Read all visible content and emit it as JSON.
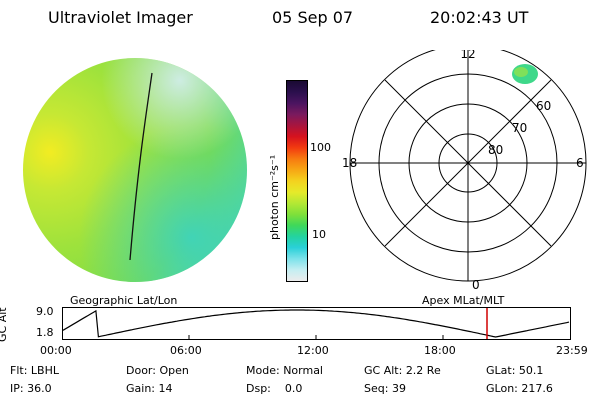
{
  "header": {
    "instrument": "Ultraviolet Imager",
    "date": "05 Sep 07",
    "time": "20:02:43 UT"
  },
  "colorbar": {
    "unit_label": "photon cm⁻²s⁻¹",
    "ticks": [
      "100",
      "10"
    ],
    "colors": [
      "#1a0a33",
      "#2b0f4d",
      "#4b1460",
      "#7a1a5e",
      "#a8153e",
      "#d6121e",
      "#f23a10",
      "#f77a10",
      "#f7a614",
      "#f4d21e",
      "#e6ea2a",
      "#b4e834",
      "#7fe03a",
      "#3fd85a",
      "#23d3a0",
      "#2ad0d8",
      "#7ce2ea",
      "#c4eef2",
      "#ececec"
    ]
  },
  "polar": {
    "hour_labels": {
      "top": "12",
      "left": "18",
      "right": "6",
      "bottom": "0"
    },
    "lat_labels": [
      "60",
      "70",
      "80"
    ]
  },
  "timeline": {
    "left_label": "Geographic Lat/Lon",
    "right_label": "Apex MLat/MLT",
    "axis_title": "GC Alt",
    "y_ticks": [
      "9.0",
      "1.8"
    ],
    "x_ticks": [
      "00:00",
      "06:00",
      "12:00",
      "18:00",
      "23:59"
    ],
    "current_marker_color": "#d00000"
  },
  "footer": {
    "row1": [
      {
        "key": "Flt:",
        "val": "LBHL"
      },
      {
        "key": "Door:",
        "val": "Open"
      },
      {
        "key": "Mode:",
        "val": "Normal"
      },
      {
        "key": "GC Alt:",
        "val": "2.2 Re"
      },
      {
        "key": "GLat:",
        "val": "50.1"
      }
    ],
    "row2": [
      {
        "key": "IP:",
        "val": "36.0"
      },
      {
        "key": "Gain:",
        "val": "14"
      },
      {
        "key": "Dsp:",
        "val": "0.0"
      },
      {
        "key": "Seq:",
        "val": "39"
      },
      {
        "key": "GLon:",
        "val": "217.6"
      }
    ]
  }
}
